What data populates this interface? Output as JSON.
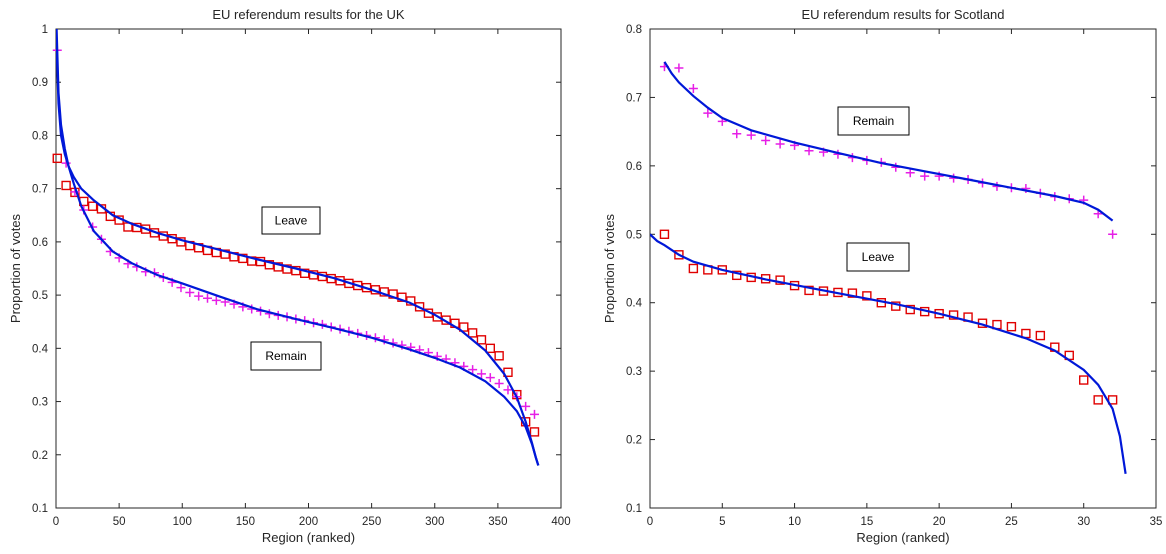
{
  "chart_data": [
    {
      "type": "scatter",
      "title": "EU referendum results for the UK",
      "xlabel": "Region (ranked)",
      "ylabel": "Proportion of votes",
      "xlim": [
        0,
        400
      ],
      "ylim": [
        0.1,
        1
      ],
      "xticks": [
        0,
        50,
        100,
        150,
        200,
        250,
        300,
        350,
        400
      ],
      "xtick_labels": [
        "0",
        "50",
        "100",
        "150",
        "200",
        "250",
        "300",
        "350",
        "400"
      ],
      "yticks": [
        0.1,
        0.2,
        0.3,
        0.4,
        0.5,
        0.6,
        0.7,
        0.8,
        0.9,
        1
      ],
      "ytick_labels": [
        "0.1",
        "0.2",
        "0.3",
        "0.4",
        "0.5",
        "0.6",
        "0.7",
        "0.8",
        "0.9",
        "1"
      ],
      "grid": false,
      "annotations": [
        {
          "text": "Leave",
          "x": 228,
          "y": 0.613
        },
        {
          "text": "Remain",
          "x": 182,
          "y": 0.386
        }
      ],
      "series": [
        {
          "marker": "square",
          "color": "#e00000",
          "x": [
            1,
            8,
            15,
            22,
            29,
            36,
            43,
            50,
            57,
            64,
            71,
            78,
            85,
            92,
            99,
            106,
            113,
            120,
            127,
            134,
            141,
            148,
            155,
            162,
            169,
            176,
            183,
            190,
            197,
            204,
            211,
            218,
            225,
            232,
            239,
            246,
            253,
            260,
            267,
            274,
            281,
            288,
            295,
            302,
            309,
            316,
            323,
            330,
            337,
            344,
            351,
            358,
            365,
            372,
            379
          ],
          "y": [
            0.757,
            0.706,
            0.693,
            0.676,
            0.667,
            0.662,
            0.648,
            0.641,
            0.628,
            0.627,
            0.624,
            0.617,
            0.611,
            0.606,
            0.6,
            0.593,
            0.589,
            0.584,
            0.58,
            0.577,
            0.572,
            0.569,
            0.564,
            0.563,
            0.557,
            0.553,
            0.549,
            0.546,
            0.541,
            0.538,
            0.535,
            0.531,
            0.527,
            0.522,
            0.518,
            0.514,
            0.51,
            0.506,
            0.502,
            0.496,
            0.489,
            0.478,
            0.466,
            0.459,
            0.453,
            0.447,
            0.44,
            0.429,
            0.416,
            0.4,
            0.386,
            0.355,
            0.313,
            0.262,
            0.243
          ]
        },
        {
          "marker": "plus",
          "color": "#e61ee6",
          "x": [
            1,
            8,
            15,
            22,
            29,
            36,
            43,
            50,
            57,
            64,
            71,
            78,
            85,
            92,
            99,
            106,
            113,
            120,
            127,
            134,
            141,
            148,
            155,
            162,
            169,
            176,
            183,
            190,
            197,
            204,
            211,
            218,
            225,
            232,
            239,
            246,
            253,
            260,
            267,
            274,
            281,
            288,
            295,
            302,
            309,
            316,
            323,
            330,
            337,
            344,
            351,
            358,
            365,
            372,
            379
          ],
          "y": [
            0.96,
            0.748,
            0.694,
            0.66,
            0.628,
            0.605,
            0.582,
            0.57,
            0.559,
            0.553,
            0.544,
            0.542,
            0.533,
            0.524,
            0.514,
            0.505,
            0.498,
            0.494,
            0.49,
            0.487,
            0.483,
            0.478,
            0.474,
            0.47,
            0.465,
            0.462,
            0.459,
            0.455,
            0.452,
            0.448,
            0.445,
            0.44,
            0.436,
            0.432,
            0.428,
            0.424,
            0.42,
            0.416,
            0.41,
            0.406,
            0.402,
            0.397,
            0.392,
            0.385,
            0.38,
            0.373,
            0.366,
            0.36,
            0.352,
            0.345,
            0.334,
            0.322,
            0.309,
            0.291,
            0.276
          ]
        },
        {
          "type": "line",
          "color": "#0018d8",
          "x": [
            0.5,
            2,
            4,
            7,
            10,
            14,
            20,
            30,
            45,
            60,
            80,
            100,
            130,
            160,
            190,
            220,
            250,
            280,
            300,
            320,
            340,
            355,
            365,
            372,
            377,
            380,
            382
          ],
          "y": [
            0.97,
            0.86,
            0.8,
            0.765,
            0.742,
            0.722,
            0.7,
            0.678,
            0.65,
            0.634,
            0.617,
            0.603,
            0.585,
            0.567,
            0.55,
            0.532,
            0.51,
            0.486,
            0.463,
            0.435,
            0.396,
            0.352,
            0.308,
            0.262,
            0.222,
            0.195,
            0.18
          ]
        },
        {
          "type": "line",
          "color": "#0018d8",
          "x": [
            0.5,
            2,
            4,
            7,
            10,
            14,
            20,
            30,
            45,
            60,
            80,
            100,
            130,
            160,
            190,
            220,
            250,
            280,
            300,
            320,
            340,
            355,
            365,
            372,
            377,
            380,
            382
          ],
          "y": [
            1.0,
            0.88,
            0.82,
            0.775,
            0.742,
            0.71,
            0.667,
            0.62,
            0.582,
            0.56,
            0.538,
            0.522,
            0.497,
            0.473,
            0.455,
            0.438,
            0.42,
            0.398,
            0.382,
            0.364,
            0.338,
            0.309,
            0.282,
            0.252,
            0.22,
            0.195,
            0.18
          ]
        }
      ]
    },
    {
      "type": "scatter",
      "title": "EU referendum results for Scotland",
      "xlabel": "Region (ranked)",
      "ylabel": "Proportion of votes",
      "xlim": [
        0,
        35
      ],
      "ylim": [
        0.1,
        0.8
      ],
      "xticks": [
        0,
        5,
        10,
        15,
        20,
        25,
        30,
        35
      ],
      "xtick_labels": [
        "0",
        "5",
        "10",
        "15",
        "20",
        "25",
        "30",
        "35"
      ],
      "yticks": [
        0.1,
        0.2,
        0.3,
        0.4,
        0.5,
        0.6,
        0.7,
        0.8
      ],
      "ytick_labels": [
        "0.1",
        "0.2",
        "0.3",
        "0.4",
        "0.5",
        "0.6",
        "0.7",
        "0.8"
      ],
      "grid": false,
      "annotations": [
        {
          "text": "Remain",
          "x": 15.6,
          "y": 0.64
        },
        {
          "text": "Leave",
          "x": 15.6,
          "y": 0.468
        }
      ],
      "series": [
        {
          "marker": "square",
          "color": "#e00000",
          "x": [
            1,
            2,
            3,
            4,
            5,
            6,
            7,
            8,
            9,
            10,
            11,
            12,
            13,
            14,
            15,
            16,
            17,
            18,
            19,
            20,
            21,
            22,
            23,
            24,
            25,
            26,
            27,
            28,
            29,
            30,
            31,
            32
          ],
          "y": [
            0.5,
            0.47,
            0.45,
            0.448,
            0.448,
            0.44,
            0.437,
            0.435,
            0.433,
            0.425,
            0.418,
            0.417,
            0.415,
            0.414,
            0.41,
            0.4,
            0.395,
            0.39,
            0.387,
            0.384,
            0.382,
            0.379,
            0.37,
            0.368,
            0.365,
            0.355,
            0.352,
            0.335,
            0.323,
            0.287,
            0.258,
            0.258
          ]
        },
        {
          "marker": "plus",
          "color": "#e61ee6",
          "x": [
            1,
            2,
            3,
            4,
            5,
            6,
            7,
            8,
            9,
            10,
            11,
            12,
            13,
            14,
            15,
            16,
            17,
            18,
            19,
            20,
            21,
            22,
            23,
            24,
            25,
            26,
            27,
            28,
            29,
            30,
            31,
            32
          ],
          "y": [
            0.745,
            0.743,
            0.713,
            0.677,
            0.665,
            0.647,
            0.645,
            0.637,
            0.632,
            0.63,
            0.622,
            0.62,
            0.617,
            0.612,
            0.608,
            0.605,
            0.598,
            0.59,
            0.585,
            0.585,
            0.582,
            0.58,
            0.575,
            0.57,
            0.568,
            0.567,
            0.56,
            0.555,
            0.552,
            0.55,
            0.53,
            0.5
          ]
        },
        {
          "type": "line",
          "color": "#0018d8",
          "x": [
            1,
            1.5,
            2,
            3,
            4,
            5,
            7,
            10,
            13,
            16,
            19,
            22,
            25,
            28,
            30,
            31,
            32
          ],
          "y": [
            0.752,
            0.735,
            0.722,
            0.702,
            0.685,
            0.67,
            0.652,
            0.634,
            0.619,
            0.604,
            0.592,
            0.58,
            0.568,
            0.556,
            0.546,
            0.536,
            0.52
          ]
        },
        {
          "type": "line",
          "color": "#0018d8",
          "x": [
            0,
            0.5,
            1,
            2,
            3,
            5,
            8,
            11,
            14,
            17,
            20,
            23,
            26,
            28,
            30,
            31,
            32,
            32.5,
            32.9
          ],
          "y": [
            0.5,
            0.49,
            0.484,
            0.47,
            0.46,
            0.448,
            0.434,
            0.422,
            0.41,
            0.398,
            0.384,
            0.368,
            0.348,
            0.33,
            0.302,
            0.28,
            0.245,
            0.205,
            0.15
          ]
        }
      ]
    }
  ]
}
